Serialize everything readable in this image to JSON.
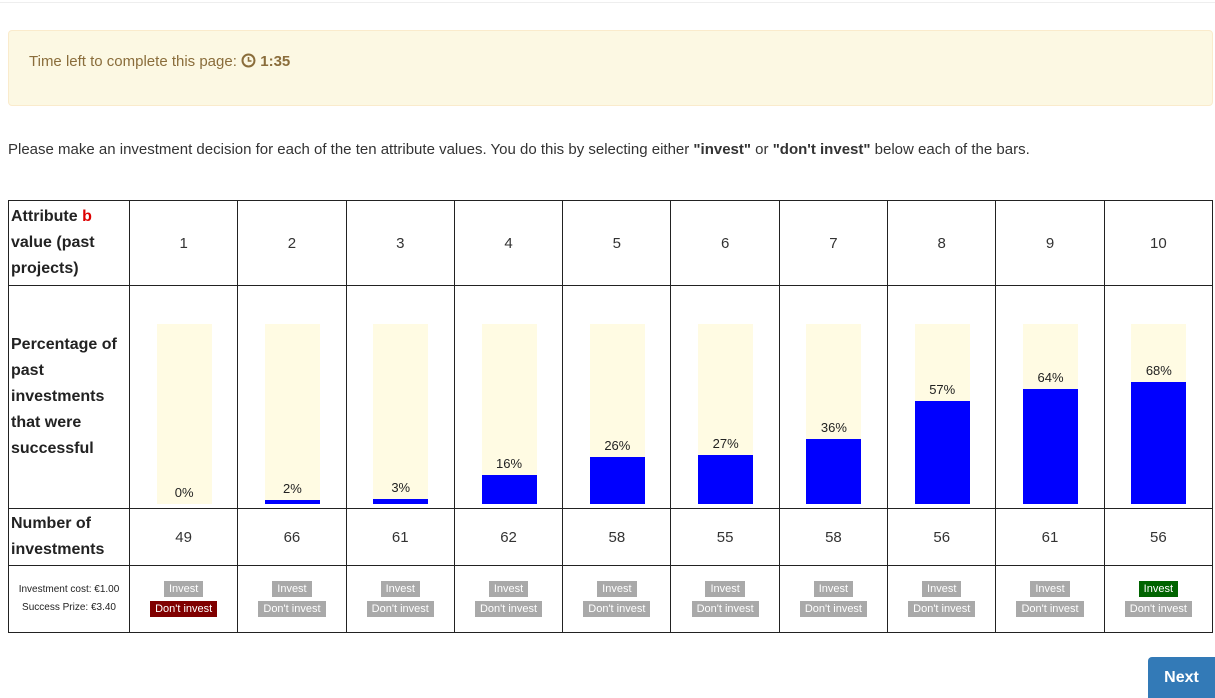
{
  "alert": {
    "text": "Time left to complete this page:",
    "time": "1:35"
  },
  "instructions": {
    "before": "Please make an investment decision for each of the ten attribute values. You do this by selecting either ",
    "invest": "\"invest\"",
    "or": " or ",
    "dont": "\"don't invest\"",
    "after": " below each of the bars."
  },
  "table": {
    "header": {
      "part1": "Attribute ",
      "part2": "b",
      "part3": " value (past projects)"
    },
    "attribute_values": [
      1,
      2,
      3,
      4,
      5,
      6,
      7,
      8,
      9,
      10
    ],
    "percentage_label": "Percentage of past investments that were successful",
    "values": [
      0,
      2,
      3,
      16,
      26,
      27,
      36,
      57,
      64,
      68
    ],
    "value_labels": [
      "0%",
      "2%",
      "3%",
      "16%",
      "26%",
      "27%",
      "36%",
      "57%",
      "64%",
      "68%"
    ],
    "count_label": "Number of investments",
    "counts": [
      49,
      66,
      61,
      62,
      58,
      55,
      58,
      56,
      61,
      56
    ],
    "cost": "Investment cost: €1.00",
    "prize": "Success Prize: €3.40",
    "buttons": {
      "invest": "Invest",
      "dont": "Don't invest"
    }
  },
  "next": "Next"
}
